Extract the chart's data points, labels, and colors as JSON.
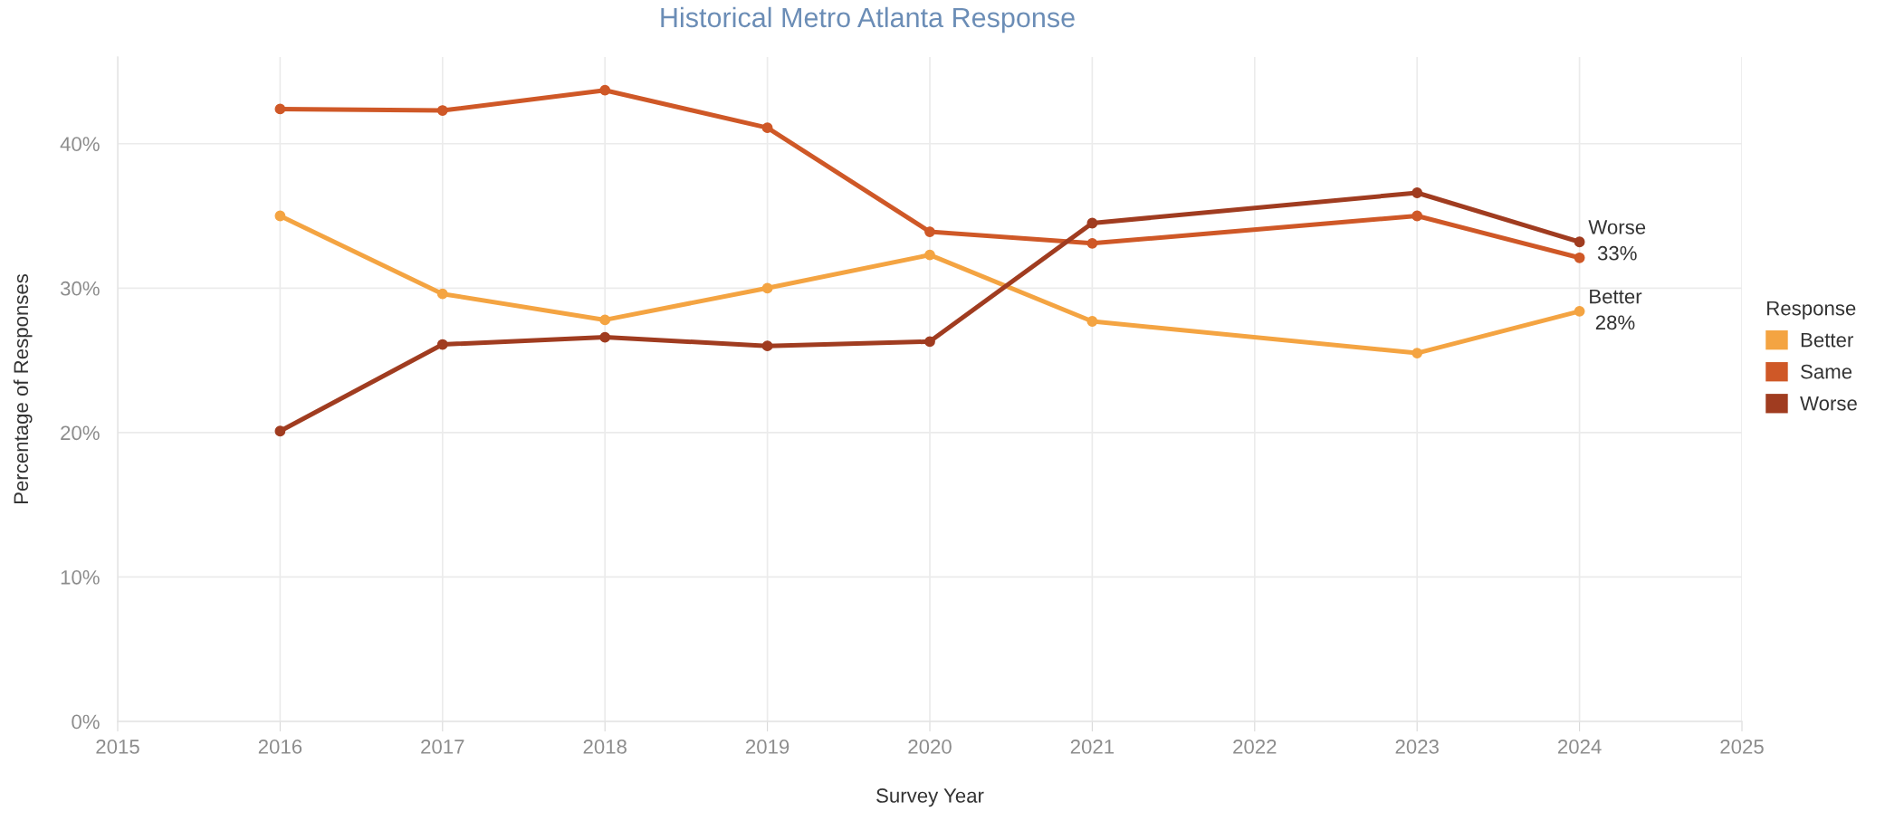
{
  "chart_data": {
    "type": "line",
    "title": "Historical Metro Atlanta Response",
    "xlabel": "Survey Year",
    "ylabel": "Percentage of Responses",
    "legend_title": "Response",
    "x": [
      2016,
      2017,
      2018,
      2019,
      2020,
      2021,
      2023,
      2024
    ],
    "series": [
      {
        "name": "Better",
        "color": "#f4a442",
        "values": [
          35.0,
          29.6,
          27.8,
          30.0,
          32.3,
          27.7,
          25.5,
          28.4
        ],
        "value_labels": [
          null,
          null,
          null,
          null,
          null,
          null,
          null,
          "28%"
        ]
      },
      {
        "name": "Same",
        "color": "#cf5827",
        "values": [
          42.4,
          42.3,
          43.7,
          41.1,
          33.9,
          33.1,
          35.0,
          32.1
        ]
      },
      {
        "name": "Worse",
        "color": "#a03c20",
        "values": [
          20.1,
          26.1,
          26.6,
          26.0,
          26.3,
          34.5,
          36.6,
          33.2
        ],
        "value_labels": [
          null,
          null,
          null,
          null,
          null,
          null,
          null,
          "33%"
        ]
      }
    ],
    "xlim": [
      2015,
      2025
    ],
    "xticks": [
      2015,
      2016,
      2017,
      2018,
      2019,
      2020,
      2021,
      2022,
      2023,
      2024,
      2025
    ],
    "ylim": [
      0,
      46
    ],
    "yticks": [
      {
        "value": 0,
        "label": "0%"
      },
      {
        "value": 10,
        "label": "10%"
      },
      {
        "value": 20,
        "label": "20%"
      },
      {
        "value": 30,
        "label": "30%"
      },
      {
        "value": 40,
        "label": "40%"
      }
    ],
    "grid": true,
    "legend": "right",
    "marker": "circle",
    "line_style": "solid"
  }
}
